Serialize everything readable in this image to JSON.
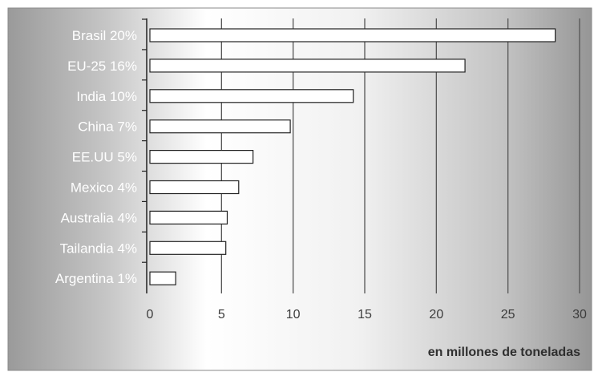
{
  "chart_data": {
    "type": "bar",
    "orientation": "horizontal",
    "categories": [
      "Brasil 20%",
      "EU-25 16%",
      "India 10%",
      "China 7%",
      "EE.UU  5%",
      "Mexico 4%",
      "Australia 4%",
      "Tailandia 4%",
      "Argentina 1%"
    ],
    "values": [
      28.3,
      22.0,
      14.2,
      9.8,
      7.2,
      6.2,
      5.4,
      5.3,
      1.8
    ],
    "xlim": [
      0,
      30
    ],
    "xticks": [
      0,
      5,
      10,
      15,
      20,
      25,
      30
    ],
    "xlabel": "en millones de toneladas",
    "ylabel": "",
    "title": "",
    "grid": "vertical",
    "legend": "none",
    "colors": {
      "background_light": "#ffffff",
      "background_dark": "#8c8c8c",
      "bar_fill": "#ffffff",
      "bar_stroke": "#222222",
      "gridline": "#555555",
      "category_text": "#ffffff",
      "tick_text": "#3c3c3c"
    }
  }
}
